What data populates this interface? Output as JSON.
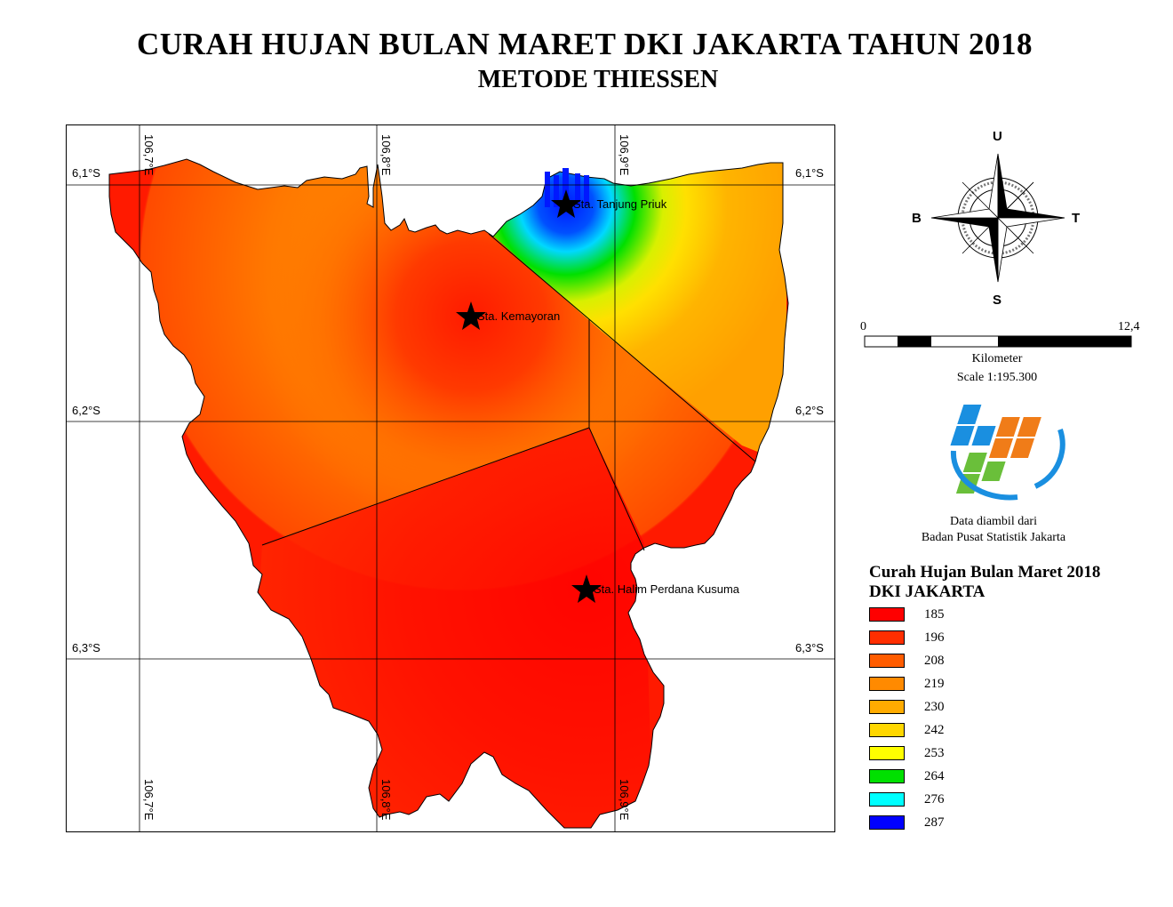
{
  "title": "CURAH HUJAN BULAN MARET DKI JAKARTA TAHUN 2018",
  "subtitle": "METODE THIESSEN",
  "map": {
    "lat_labels": [
      "6,1°S",
      "6,2°S",
      "6,3°S"
    ],
    "lon_labels": [
      "106,7°E",
      "106,8°E",
      "106,9°E"
    ],
    "stations": [
      {
        "name": "Sta. Tanjung Priuk"
      },
      {
        "name": "Sta. Kemayoran"
      },
      {
        "name": "Sta. Halim Perdana Kusuma"
      }
    ]
  },
  "compass": {
    "north": "U",
    "south": "S",
    "east": "T",
    "west": "B"
  },
  "scale": {
    "start": "0",
    "end": "12,4",
    "unit": "Kilometer",
    "ratio": "Scale 1:195.300"
  },
  "source": {
    "line1": "Data diambil dari",
    "line2": "Badan Pusat Statistik Jakarta"
  },
  "legend": {
    "title1": "Curah Hujan Bulan Maret 2018",
    "title2": "DKI JAKARTA",
    "items": [
      {
        "value": "185",
        "color": "#fe0000"
      },
      {
        "value": "196",
        "color": "#ff2e00"
      },
      {
        "value": "208",
        "color": "#ff5c00"
      },
      {
        "value": "219",
        "color": "#ff8a00"
      },
      {
        "value": "230",
        "color": "#ffab00"
      },
      {
        "value": "242",
        "color": "#ffd700"
      },
      {
        "value": "253",
        "color": "#ffff00"
      },
      {
        "value": "264",
        "color": "#00e000"
      },
      {
        "value": "276",
        "color": "#00ffff"
      },
      {
        "value": "287",
        "color": "#0000ff"
      }
    ]
  }
}
